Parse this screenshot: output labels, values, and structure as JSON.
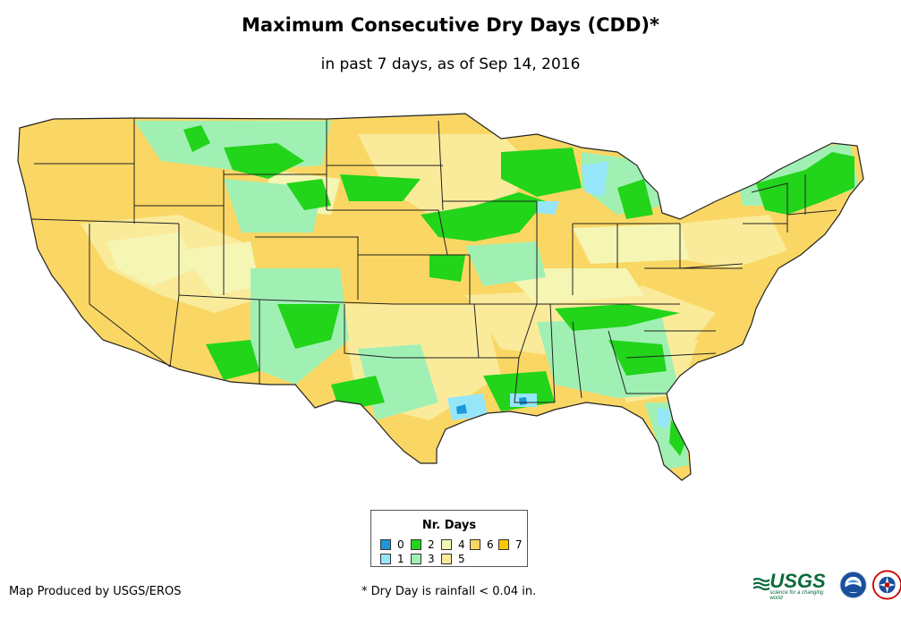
{
  "title": "Maximum Consecutive Dry Days (CDD)*",
  "subtitle": "in past 7 days, as of Sep 14, 2016",
  "legend": {
    "title": "Nr. Days",
    "items": [
      {
        "label": "0",
        "color": "#1e96dc"
      },
      {
        "label": "1",
        "color": "#96e6fa"
      },
      {
        "label": "2",
        "color": "#22d41a"
      },
      {
        "label": "3",
        "color": "#a0f0b4"
      },
      {
        "label": "4",
        "color": "#f5f5b4"
      },
      {
        "label": "5",
        "color": "#faeb9b"
      },
      {
        "label": "6",
        "color": "#fad764"
      },
      {
        "label": "7",
        "color": "#fac800"
      }
    ]
  },
  "footer": {
    "producer": "Map Produced by USGS/EROS",
    "note": "* Dry Day is rainfall < 0.04 in."
  },
  "logos": {
    "usgs": "USGS",
    "usgs_tagline": "science for a changing world"
  }
}
